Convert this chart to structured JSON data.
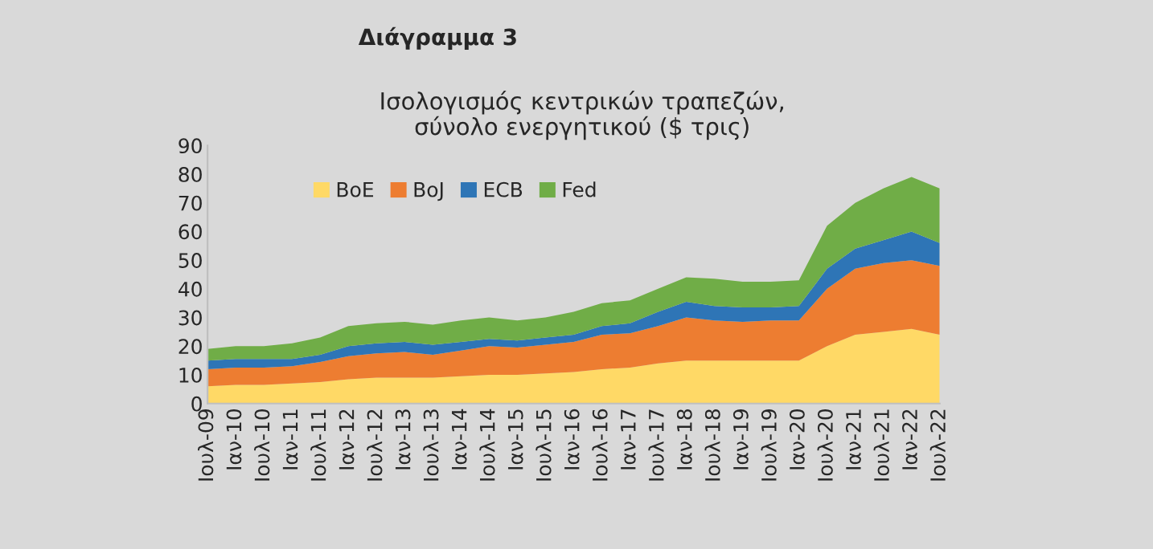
{
  "chart_data": {
    "type": "area",
    "stacked": true,
    "title": "Διάγραμμα 3",
    "subtitle": "Ισολογισμός κεντρικών τραπεζών,\nσύνολο ενεργητικού ($ τρις)",
    "categories": [
      "Ιουλ-09",
      "Ιαν-10",
      "Ιουλ-10",
      "Ιαν-11",
      "Ιουλ-11",
      "Ιαν-12",
      "Ιουλ-12",
      "Ιαν-13",
      "Ιουλ-13",
      "Ιαν-14",
      "Ιουλ-14",
      "Ιαν-15",
      "Ιουλ-15",
      "Ιαν-16",
      "Ιουλ-16",
      "Ιαν-17",
      "Ιουλ-17",
      "Ιαν-18",
      "Ιουλ-18",
      "Ιαν-19",
      "Ιουλ-19",
      "Ιαν-20",
      "Ιουλ-20",
      "Ιαν-21",
      "Ιουλ-21",
      "Ιαν-22",
      "Ιουλ-22"
    ],
    "series": [
      {
        "name": "BoE",
        "color": "#ffd966",
        "values": [
          6,
          6.5,
          6.5,
          7,
          7.5,
          8.5,
          9,
          9,
          9,
          9.5,
          10,
          10,
          10.5,
          11,
          12,
          12.5,
          14,
          15,
          15,
          15,
          15,
          15,
          20,
          24,
          25,
          26,
          24
        ]
      },
      {
        "name": "BoJ",
        "color": "#ed7d31",
        "values": [
          6,
          6,
          6,
          6,
          7,
          8,
          8.5,
          9,
          8,
          9,
          10,
          9.5,
          10,
          10.5,
          12,
          12,
          13,
          15,
          14,
          13.5,
          14,
          14,
          20,
          23,
          24,
          24,
          24
        ]
      },
      {
        "name": "ECB",
        "color": "#2e75b6",
        "values": [
          3,
          3,
          3,
          2.5,
          2.5,
          3.5,
          3.5,
          3.5,
          3.5,
          3,
          2.5,
          2.5,
          2.5,
          2.5,
          3,
          3.5,
          5,
          5.5,
          5,
          5,
          4.5,
          5,
          7,
          7,
          8,
          10,
          8
        ]
      },
      {
        "name": "Fed",
        "color": "#70ad47",
        "values": [
          4,
          4.5,
          4.5,
          5.5,
          6,
          7,
          7,
          7,
          7,
          7.5,
          7.5,
          7,
          7,
          8,
          8,
          8,
          8,
          8.5,
          9.5,
          9,
          9,
          9,
          15,
          16,
          18,
          19,
          19
        ]
      }
    ],
    "ylim": [
      0,
      90
    ],
    "yticks": [
      0,
      10,
      20,
      30,
      40,
      50,
      60,
      70,
      80,
      90
    ],
    "grid": false,
    "legend": "top left"
  }
}
